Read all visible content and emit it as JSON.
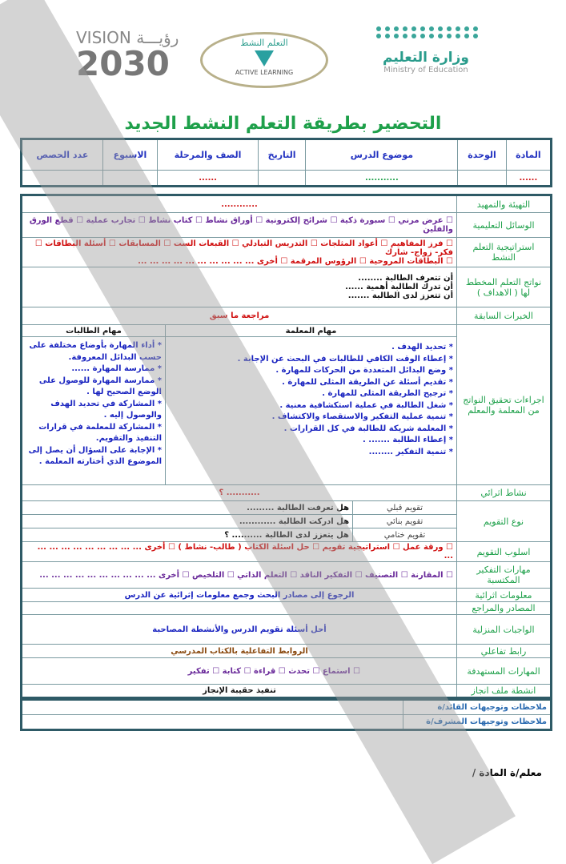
{
  "header": {
    "moe_ar": "وزارة التعليم",
    "moe_en": "Ministry of Education",
    "active_ar": "التعلم النشط",
    "active_en": "ACTIVE LEARNING",
    "vision_word": "VISION رؤيـــة",
    "vision_num": "2030"
  },
  "title": "التحضير بطريقة التعلم النشط الجديد",
  "info": {
    "headers": [
      "المادة",
      "الوحدة",
      "موضوع الدرس",
      "التاريخ",
      "الصف والمرحلة",
      "الاسبوع",
      "عدد الحصص"
    ],
    "values": [
      "......",
      "",
      "...........",
      "",
      "......",
      "",
      ""
    ]
  },
  "rows": {
    "intro": {
      "label": "التهيئة والتمهيد",
      "value": "............"
    },
    "aids": {
      "label": "الوسائل التعليمية",
      "value": "☐ عرض مرني ☐ سبورة ذكية ☐ شرائح إلكترونية ☐ أوراق نشاط ☐ كتاب نشاط ☐ تجارب عملية ☐ قطع الورق والفلين"
    },
    "strategy": {
      "label": "استراتيجية التعلم النشط",
      "line1": "☐ فرز المفاهيم ☐ أعواد المثلجات ☐ التدريس التبادلي ☐ القبعات الست ☐ المسابقات ☐ أسئلة البطاقات ☐ فكر- زواج- شارك",
      "line2": "☐ البطاقات المروحية ☐ الرؤوس المرقمة ☐ أخرى ... ... ... ... ... ... ... ... ... ..."
    },
    "outcomes": {
      "label": "نواتج التعلم المخطط لها ( الاهداف )",
      "items": [
        "أن تتعرف الطالبة ........",
        "أن تدرك الطالبة أهمية ......",
        "أن تتعزز لدى الطالبة ......."
      ]
    },
    "prior": {
      "label": "الخبرات السابقة",
      "value": "مراجعة ما سبق"
    },
    "procedures": {
      "label": "اجراءات تحقيق النواتج من المعلمة والمعلم",
      "teacher_head": "مهام المعلمة",
      "students_head": "مهام الطالبات",
      "teacher": [
        "* تحديد الهدف .",
        "* إعطاء الوقت الكافي للطالبات في البحث عن الإجابة .",
        "* وضع البدائل المتعددة من الحركات للمهارة .",
        "* تقديم أسئلة عن الطريقة المثلى للمهارة .",
        "* ترجيح الطريقة المثلى للمهارة .",
        "* شغل الطالبة في عملية استكشافية معنية .",
        "* تنمية عملية التفكير والاستقصاء والاكتشاف .",
        "* المعلمة شريكة للطالبة في كل القرارات .",
        "* إعطاء الطالبة ....... .",
        "* تنمية التفكير ........"
      ],
      "students": [
        "* أداء المهارة بأوضاع مختلفة على حسب البدائل المعروفة.",
        "* ممارسة المهارة ......",
        "* ممارسة المهارة للوصول على الوضع الصحيح لها .",
        "* المشاركة في تحديد الهدف والوصول إليه .",
        "* المشاركة للمعلمة في قرارات التنفيذ والتقويم.",
        "* الإجابة على السؤال أن يصل إلى الموضوع الذي أختارته المعلمة ."
      ]
    },
    "enrich": {
      "label": "نشاط اثرائي",
      "value": "........... ؟"
    },
    "assessment": {
      "label": "نوع التقويم",
      "items": [
        {
          "type": "تقويم قبلي",
          "q": "هل تعرفت الطالبة ........."
        },
        {
          "type": "تقويم بنائي",
          "q": "هل ادركت الطالبة ............"
        },
        {
          "type": "تقويم ختامي",
          "q": "هل يتعزز لدى الطالبة .......... ؟"
        }
      ]
    },
    "style": {
      "label": "اسلوب التقويم",
      "value": "☐ ورقة عمل ☐ استراتيجية تقويم ☐ حل اسئلة الكتاب ( طالب- نشاط ) ☐ أخرى ... ... ... ... ... ... ... ... ... ..."
    },
    "thinking": {
      "label": "مهارات التفكير المكتسبة",
      "value": "☐ المقارنة ☐ التصنيف ☐ التفكير الناقد ☐ التعلم الذاتي ☐ التلخيص ☐ أخرى ... ... ... ... ... ... ... ... ... ..."
    },
    "info_enrich": {
      "label": "معلومات اثرائية",
      "value": "الرجوع إلى مصادر البحث وجمع معلومات إثرائية عن الدرس"
    },
    "sources": {
      "label": "المصادر والمراجع",
      "value": ""
    },
    "homework": {
      "label": "الواجبات المنزلية",
      "value": "أحل أسئلة تقويم الدرس والأنشطة المصاحبة"
    },
    "link": {
      "label": "رابط تفاعلي",
      "value": "الروابط التفاعلية بالكتاب المدرسي"
    },
    "skills": {
      "label": "المهارات المستهدفة",
      "value": "☐ استماع ☐ تحدث ☐ قراءة ☐ كتابة ☐ تفكير"
    },
    "portfolio": {
      "label": "انشطة ملف انجاز",
      "value": "تنفيذ حقيبة الإنجاز"
    }
  },
  "notes": [
    "ملاحظات وتوجيهات القائد/ة",
    "ملاحظات وتوجيهات المشرف/ة"
  ],
  "signature": "معلم/ة المادة /",
  "colors": {
    "border": "#2e5a66",
    "label": "#1ea04a",
    "title": "#1ea04a",
    "red": "#d01010",
    "blue": "#1a24c0",
    "purple": "#6a2a9a"
  }
}
